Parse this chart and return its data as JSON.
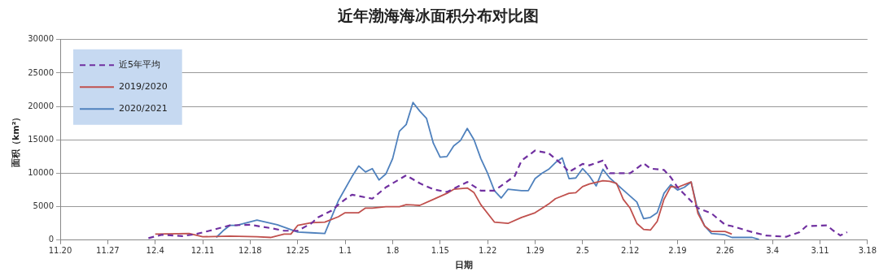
{
  "chart_data": {
    "type": "line",
    "title": "近年渤海海冰面积分布对比图",
    "xlabel": "日期",
    "ylabel": "面积（km²）",
    "xlim": [
      "2019-11-20",
      "2020-03-18"
    ],
    "xticks": [
      {
        "value": "2019-11-20",
        "label": "11.20"
      },
      {
        "value": "2019-11-27",
        "label": "11.27"
      },
      {
        "value": "2019-12-04",
        "label": "12.4"
      },
      {
        "value": "2019-12-11",
        "label": "12.11"
      },
      {
        "value": "2019-12-18",
        "label": "12.18"
      },
      {
        "value": "2019-12-25",
        "label": "12.25"
      },
      {
        "value": "2020-01-01",
        "label": "1.1"
      },
      {
        "value": "2020-01-08",
        "label": "1.8"
      },
      {
        "value": "2020-01-15",
        "label": "1.15"
      },
      {
        "value": "2020-01-22",
        "label": "1.22"
      },
      {
        "value": "2020-01-29",
        "label": "1.29"
      },
      {
        "value": "2020-02-05",
        "label": "2.5"
      },
      {
        "value": "2020-02-12",
        "label": "2.12"
      },
      {
        "value": "2020-02-19",
        "label": "2.19"
      },
      {
        "value": "2020-02-26",
        "label": "2.26"
      },
      {
        "value": "2020-03-04",
        "label": "3.4"
      },
      {
        "value": "2020-03-11",
        "label": "3.11"
      },
      {
        "value": "2020-03-18",
        "label": "3.18"
      }
    ],
    "ylim": [
      0,
      30000
    ],
    "yticks": [
      0,
      5000,
      10000,
      15000,
      20000,
      25000,
      30000
    ],
    "grid": "y",
    "legend": "top left",
    "marker": "none",
    "series": [
      {
        "name": "近5年平均",
        "color": "#7030a0",
        "line_style": "dashed",
        "x": [
          "2019-12-03",
          "2019-12-05",
          "2019-12-08",
          "2019-12-10",
          "2019-12-12",
          "2019-12-15",
          "2019-12-18",
          "2019-12-21",
          "2019-12-23",
          "2019-12-25",
          "2019-12-27",
          "2019-12-28",
          "2019-12-30",
          "2019-12-31",
          "2020-01-01",
          "2020-01-02",
          "2020-01-05",
          "2020-01-07",
          "2020-01-10",
          "2020-01-12",
          "2020-01-14",
          "2020-01-16",
          "2020-01-19",
          "2020-01-21",
          "2020-01-23",
          "2020-01-26",
          "2020-01-27",
          "2020-01-29",
          "2020-01-31",
          "2020-02-02",
          "2020-02-03",
          "2020-02-05",
          "2020-02-06",
          "2020-02-08",
          "2020-02-09",
          "2020-02-12",
          "2020-02-14",
          "2020-02-15",
          "2020-02-17",
          "2020-02-18",
          "2020-02-19",
          "2020-02-22",
          "2020-02-24",
          "2020-02-26",
          "2020-02-27",
          "2020-03-01",
          "2020-03-03",
          "2020-03-06",
          "2020-03-08",
          "2020-03-09",
          "2020-03-12",
          "2020-03-13",
          "2020-03-14",
          "2020-03-15"
        ],
        "values": [
          300,
          800,
          600,
          900,
          1400,
          2200,
          2300,
          1800,
          1400,
          1400,
          2500,
          3400,
          4400,
          5300,
          6100,
          6800,
          6200,
          7900,
          9700,
          8500,
          7600,
          7200,
          8700,
          7400,
          7400,
          9600,
          11900,
          13400,
          13000,
          11300,
          10200,
          11400,
          11200,
          11900,
          10000,
          10000,
          11500,
          10700,
          10500,
          9400,
          7900,
          4800,
          4000,
          2300,
          2100,
          1200,
          700,
          500,
          1200,
          2100,
          2200,
          1400,
          700,
          1200
        ]
      },
      {
        "name": "2019/2020",
        "color": "#c0504d",
        "line_style": "solid",
        "x": [
          "2019-12-04",
          "2019-12-09",
          "2019-12-11",
          "2019-12-15",
          "2019-12-19",
          "2019-12-21",
          "2019-12-23",
          "2019-12-24",
          "2019-12-25",
          "2019-12-27",
          "2019-12-29",
          "2019-12-31",
          "2020-01-01",
          "2020-01-03",
          "2020-01-04",
          "2020-01-05",
          "2020-01-07",
          "2020-01-09",
          "2020-01-10",
          "2020-01-12",
          "2020-01-14",
          "2020-01-16",
          "2020-01-17",
          "2020-01-19",
          "2020-01-20",
          "2020-01-21",
          "2020-01-23",
          "2020-01-25",
          "2020-01-27",
          "2020-01-29",
          "2020-01-31",
          "2020-02-01",
          "2020-02-03",
          "2020-02-04",
          "2020-02-05",
          "2020-02-06",
          "2020-02-08",
          "2020-02-09",
          "2020-02-10",
          "2020-02-11",
          "2020-02-12",
          "2020-02-13",
          "2020-02-14",
          "2020-02-15",
          "2020-02-16",
          "2020-02-17",
          "2020-02-18",
          "2020-02-19",
          "2020-02-21",
          "2020-02-22",
          "2020-02-23",
          "2020-02-24",
          "2020-02-26",
          "2020-02-27"
        ],
        "values": [
          900,
          1000,
          500,
          600,
          500,
          400,
          900,
          900,
          2200,
          2600,
          2700,
          3500,
          4100,
          4100,
          4800,
          4800,
          5000,
          5000,
          5300,
          5200,
          6100,
          7000,
          7600,
          7800,
          7100,
          5300,
          2700,
          2500,
          3400,
          4100,
          5400,
          6200,
          7000,
          7100,
          8000,
          8400,
          8900,
          8800,
          8500,
          6100,
          4800,
          2500,
          1600,
          1500,
          2800,
          6100,
          8000,
          7900,
          8700,
          4000,
          2100,
          1300,
          1300,
          900
        ]
      },
      {
        "name": "2020/2021",
        "color": "#4f81bd",
        "line_style": "solid",
        "x": [
          "2019-12-13",
          "2019-12-14",
          "2019-12-15",
          "2019-12-16",
          "2019-12-19",
          "2019-12-22",
          "2019-12-25",
          "2019-12-27",
          "2019-12-29",
          "2019-12-31",
          "2020-01-02",
          "2020-01-03",
          "2020-01-04",
          "2020-01-05",
          "2020-01-06",
          "2020-01-07",
          "2020-01-08",
          "2020-01-09",
          "2020-01-10",
          "2020-01-11",
          "2020-01-12",
          "2020-01-13",
          "2020-01-14",
          "2020-01-15",
          "2020-01-16",
          "2020-01-17",
          "2020-01-18",
          "2020-01-19",
          "2020-01-20",
          "2020-01-21",
          "2020-01-22",
          "2020-01-23",
          "2020-01-24",
          "2020-01-25",
          "2020-01-27",
          "2020-01-28",
          "2020-01-29",
          "2020-01-30",
          "2020-01-31",
          "2020-02-01",
          "2020-02-02",
          "2020-02-03",
          "2020-02-04",
          "2020-02-05",
          "2020-02-06",
          "2020-02-07",
          "2020-02-08",
          "2020-02-09",
          "2020-02-10",
          "2020-02-11",
          "2020-02-13",
          "2020-02-14",
          "2020-02-15",
          "2020-02-16",
          "2020-02-17",
          "2020-02-18",
          "2020-02-19",
          "2020-02-20",
          "2020-02-21",
          "2020-02-22",
          "2020-02-23",
          "2020-02-24",
          "2020-02-26",
          "2020-02-27",
          "2020-03-01",
          "2020-03-02"
        ],
        "values": [
          400,
          1400,
          2200,
          2200,
          3000,
          2300,
          1200,
          1100,
          1000,
          5900,
          9500,
          11100,
          10200,
          10700,
          9000,
          9900,
          12200,
          16300,
          17300,
          20600,
          19300,
          18200,
          14500,
          12400,
          12500,
          14100,
          14900,
          16700,
          15000,
          12200,
          10000,
          7400,
          6300,
          7600,
          7400,
          7400,
          9200,
          10000,
          10600,
          11600,
          12300,
          9200,
          9300,
          10700,
          9600,
          8100,
          10600,
          9300,
          8400,
          7500,
          5700,
          3200,
          3400,
          4100,
          7000,
          8300,
          7500,
          7900,
          8700,
          4400,
          2100,
          1000,
          800,
          400,
          400,
          100
        ]
      }
    ]
  }
}
